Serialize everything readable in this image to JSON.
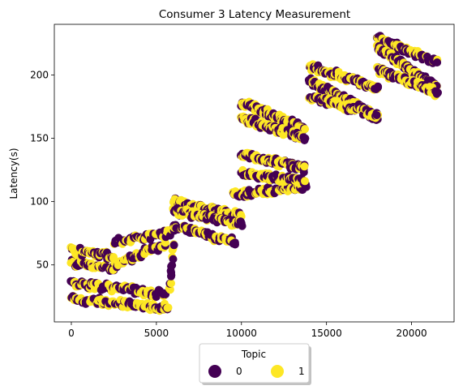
{
  "chart_data": {
    "type": "scatter",
    "title": "Consumer 3 Latency Measurement",
    "xlabel": "",
    "ylabel": "Latency(s)",
    "xlim": [
      -1000,
      22500
    ],
    "ylim": [
      5,
      240
    ],
    "x_ticks": [
      0,
      5000,
      10000,
      15000,
      20000
    ],
    "y_ticks": [
      50,
      100,
      150,
      200
    ],
    "grid": false,
    "legend": {
      "title": "Topic",
      "placement": "bottom-center",
      "entries": [
        "0",
        "1"
      ]
    },
    "colors": {
      "0": "#440154",
      "1": "#fde725"
    },
    "segments": [
      {
        "x0": 0,
        "x1": 5700,
        "y0": 23,
        "y1": 16,
        "count": 60
      },
      {
        "x0": 0,
        "x1": 5500,
        "y0": 36,
        "y1": 27,
        "count": 60
      },
      {
        "x0": 0,
        "x1": 2500,
        "y0": 51,
        "y1": 47,
        "count": 30
      },
      {
        "x0": 2500,
        "x1": 5500,
        "y0": 49,
        "y1": 67,
        "count": 35
      },
      {
        "x0": 0,
        "x1": 2500,
        "y0": 61,
        "y1": 57,
        "count": 30
      },
      {
        "x0": 2500,
        "x1": 6000,
        "y0": 68,
        "y1": 76,
        "count": 35
      },
      {
        "x0": 5800,
        "x1": 6000,
        "y0": 32,
        "y1": 66,
        "count": 8
      },
      {
        "x0": 6000,
        "x1": 10000,
        "y0": 100,
        "y1": 88,
        "count": 60
      },
      {
        "x0": 6000,
        "x1": 10000,
        "y0": 93,
        "y1": 82,
        "count": 60
      },
      {
        "x0": 6000,
        "x1": 9600,
        "y0": 80,
        "y1": 68,
        "count": 45
      },
      {
        "x0": 9500,
        "x1": 13800,
        "y0": 105,
        "y1": 112,
        "count": 55
      },
      {
        "x0": 10000,
        "x1": 13700,
        "y0": 122,
        "y1": 116,
        "count": 50
      },
      {
        "x0": 10000,
        "x1": 13700,
        "y0": 138,
        "y1": 126,
        "count": 55
      },
      {
        "x0": 10000,
        "x1": 13700,
        "y0": 178,
        "y1": 158,
        "count": 65
      },
      {
        "x0": 10000,
        "x1": 13700,
        "y0": 166,
        "y1": 150,
        "count": 65
      },
      {
        "x0": 14000,
        "x1": 18000,
        "y0": 207,
        "y1": 190,
        "count": 60
      },
      {
        "x0": 14000,
        "x1": 18000,
        "y0": 196,
        "y1": 166,
        "count": 90
      },
      {
        "x0": 14000,
        "x1": 18000,
        "y0": 183,
        "y1": 168,
        "count": 60
      },
      {
        "x0": 18000,
        "x1": 21500,
        "y0": 230,
        "y1": 210,
        "count": 55
      },
      {
        "x0": 18000,
        "x1": 21500,
        "y0": 222,
        "y1": 190,
        "count": 80
      },
      {
        "x0": 18000,
        "x1": 21500,
        "y0": 204,
        "y1": 186,
        "count": 60
      }
    ]
  }
}
